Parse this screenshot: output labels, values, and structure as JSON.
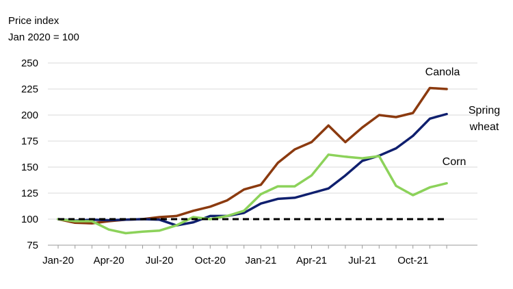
{
  "chart_data": {
    "type": "line",
    "ylabel_lines": [
      "Price index",
      "Jan 2020 = 100"
    ],
    "ylim": [
      75,
      250
    ],
    "yticks": [
      75,
      100,
      125,
      150,
      175,
      200,
      225,
      250
    ],
    "x": [
      "Jan-20",
      "Feb-20",
      "Mar-20",
      "Apr-20",
      "May-20",
      "Jun-20",
      "Jul-20",
      "Aug-20",
      "Sep-20",
      "Oct-20",
      "Nov-20",
      "Dec-20",
      "Jan-21",
      "Feb-21",
      "Mar-21",
      "Apr-21",
      "May-21",
      "Jun-21",
      "Jul-21",
      "Aug-21",
      "Sep-21",
      "Oct-21",
      "Nov-21",
      "Dec-21"
    ],
    "xtick_labels": [
      "Jan-20",
      "Apr-20",
      "Jul-20",
      "Oct-20",
      "Jan-21",
      "Apr-21",
      "Jul-21",
      "Oct-21"
    ],
    "grid": "horizontal",
    "series": [
      {
        "name": "Canola",
        "label_lines": [
          "Canola"
        ],
        "color": "#8B3A0F",
        "values": [
          100,
          96.5,
          96,
          98,
          99.5,
          100,
          102,
          103,
          108,
          112,
          118,
          128.5,
          133,
          154,
          167,
          174,
          190,
          174,
          188,
          200,
          198,
          202,
          226,
          225
        ]
      },
      {
        "name": "Spring wheat",
        "label_lines": [
          "Spring",
          "wheat"
        ],
        "color": "#0F1F6E",
        "values": [
          100,
          98.5,
          99.5,
          99,
          99.5,
          100,
          99.5,
          94,
          97,
          103,
          103,
          106,
          115,
          119.5,
          120.5,
          125,
          129.5,
          142,
          156,
          161,
          168,
          180,
          196.5,
          201
        ]
      },
      {
        "name": "Corn",
        "label_lines": [
          "Corn"
        ],
        "color": "#8CD25A",
        "values": [
          100,
          98,
          98,
          90,
          86.5,
          88,
          89,
          94,
          102,
          100,
          103,
          108,
          124,
          131.5,
          131.5,
          142,
          162,
          160,
          158.5,
          160.5,
          132,
          123,
          130.5,
          134.5
        ]
      },
      {
        "name": "Baseline",
        "label_lines": [],
        "color": "#000000",
        "dashed": true,
        "values": [
          100,
          100,
          100,
          100,
          100,
          100,
          100,
          100,
          100,
          100,
          100,
          100,
          100,
          100,
          100,
          100,
          100,
          100,
          100,
          100,
          100,
          100,
          100,
          100
        ]
      }
    ]
  }
}
